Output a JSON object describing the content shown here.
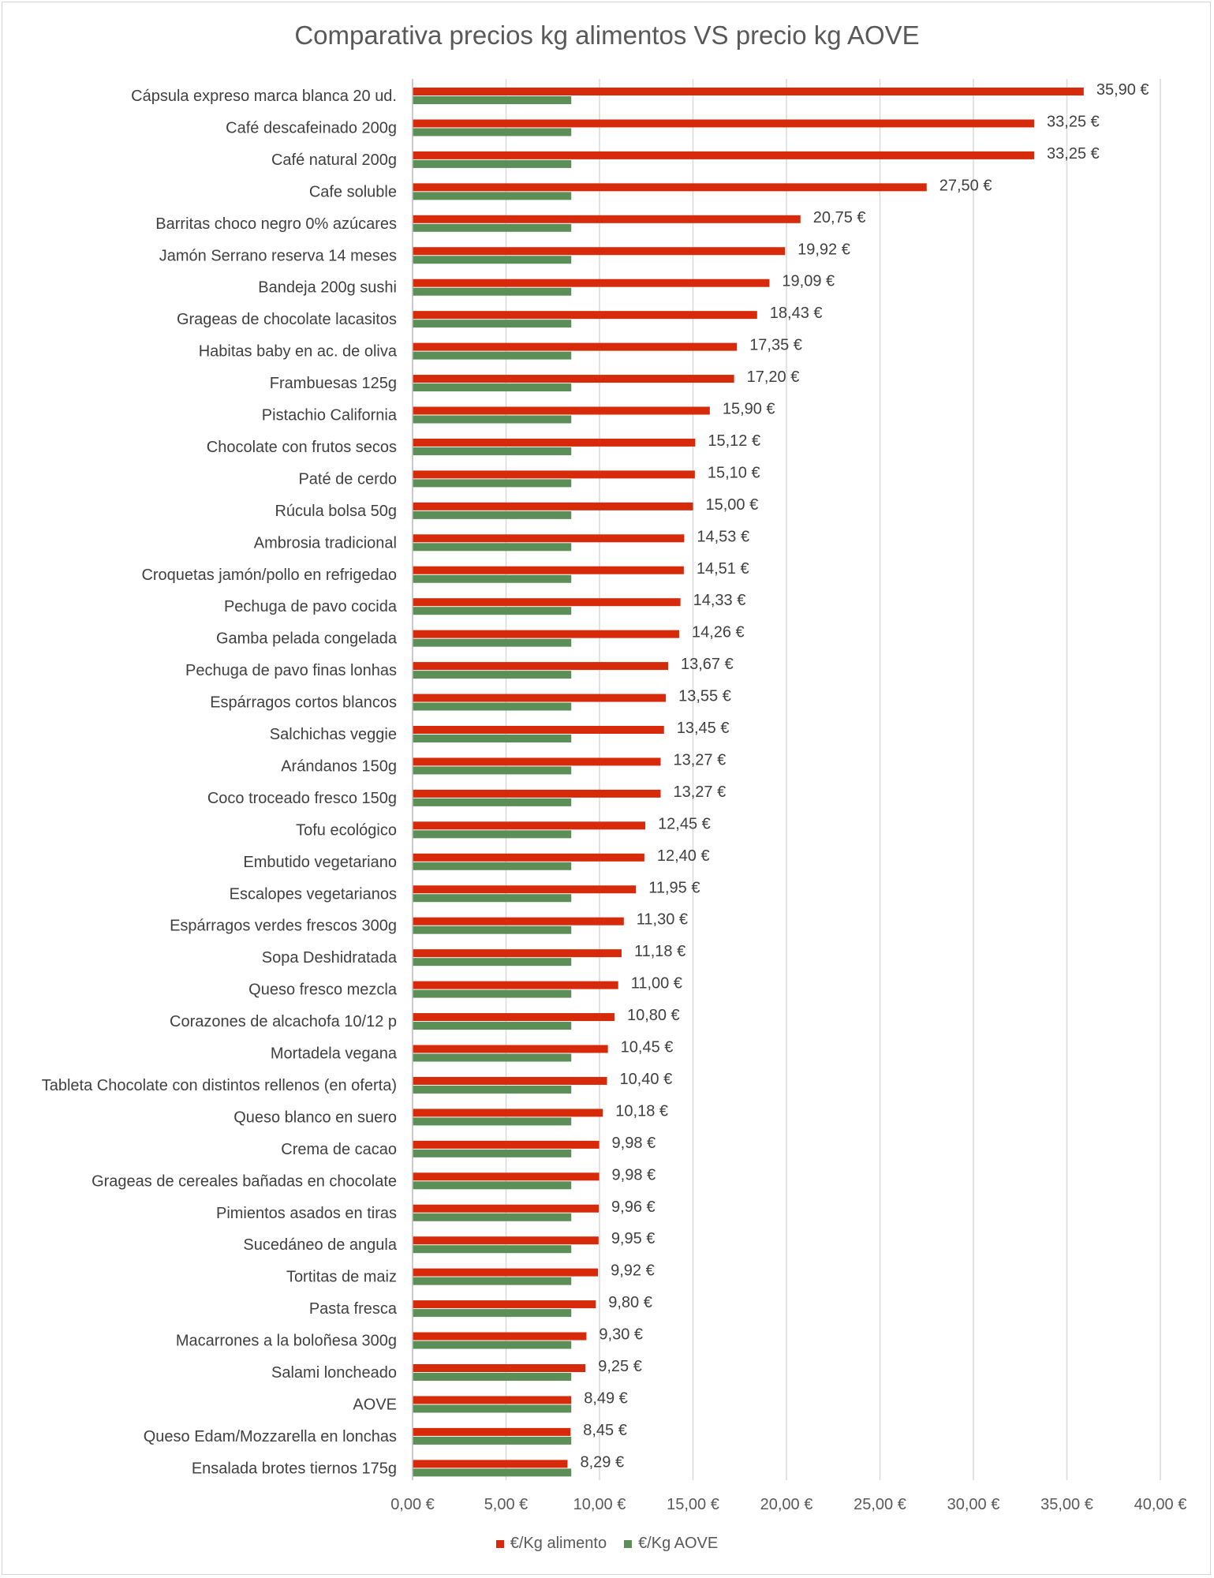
{
  "chart_data": {
    "type": "bar",
    "orientation": "horizontal",
    "title": "Comparativa precios kg alimentos VS precio kg AOVE",
    "categories": [
      "Cápsula expreso marca blanca 20 ud.",
      "Café descafeinado 200g",
      "Café natural 200g",
      "Cafe soluble",
      "Barritas choco negro 0% azúcares",
      "Jamón Serrano reserva 14 meses",
      "Bandeja 200g sushi",
      "Grageas de chocolate lacasitos",
      "Habitas baby en ac. de oliva",
      "Frambuesas 125g",
      "Pistachio California",
      "Chocolate con frutos secos",
      "Paté de cerdo",
      "Rúcula bolsa 50g",
      "Ambrosia tradicional",
      "Croquetas jamón/pollo  en refrigedao",
      "Pechuga de pavo cocida",
      "Gamba pelada congelada",
      "Pechuga de pavo finas lonhas",
      "Espárragos cortos blancos",
      "Salchichas veggie",
      "Arándanos 150g",
      "Coco troceado fresco 150g",
      "Tofu ecológico",
      "Embutido vegetariano",
      "Escalopes vegetarianos",
      "Espárragos verdes frescos 300g",
      "Sopa Deshidratada",
      "Queso fresco mezcla",
      "Corazones de alcachofa 10/12 p",
      "Mortadela vegana",
      "Tableta Chocolate con distintos rellenos (en oferta)",
      "Queso blanco en suero",
      "Crema de cacao",
      "Grageas de cereales bañadas en chocolate",
      "Pimientos asados en tiras",
      "Sucedáneo de angula",
      "Tortitas de maiz",
      "Pasta fresca",
      "Macarrones a la boloñesa 300g",
      "Salami loncheado",
      "AOVE",
      "Queso Edam/Mozzarella en lonchas",
      "Ensalada brotes tiernos 175g"
    ],
    "series": [
      {
        "name": "€/Kg alimento",
        "color": "#d62a0a",
        "values": [
          35.9,
          33.25,
          33.25,
          27.5,
          20.75,
          19.92,
          19.09,
          18.43,
          17.35,
          17.2,
          15.9,
          15.12,
          15.1,
          15.0,
          14.53,
          14.51,
          14.33,
          14.26,
          13.67,
          13.55,
          13.45,
          13.27,
          13.27,
          12.45,
          12.4,
          11.95,
          11.3,
          11.18,
          11.0,
          10.8,
          10.45,
          10.4,
          10.18,
          9.98,
          9.98,
          9.96,
          9.95,
          9.92,
          9.8,
          9.3,
          9.25,
          8.49,
          8.45,
          8.29
        ],
        "labels": [
          "35,90 €",
          "33,25 €",
          "33,25 €",
          "27,50 €",
          "20,75 €",
          "19,92 €",
          "19,09 €",
          "18,43 €",
          "17,35 €",
          "17,20 €",
          "15,90 €",
          "15,12 €",
          "15,10 €",
          "15,00 €",
          "14,53 €",
          "14,51 €",
          "14,33 €",
          "14,26 €",
          "13,67 €",
          "13,55 €",
          "13,45 €",
          "13,27 €",
          "13,27 €",
          "12,45 €",
          "12,40 €",
          "11,95 €",
          "11,30 €",
          "11,18 €",
          "11,00 €",
          "10,80 €",
          "10,45 €",
          "10,40 €",
          "10,18 €",
          "9,98 €",
          "9,98 €",
          "9,96 €",
          "9,95 €",
          "9,92 €",
          "9,80 €",
          "9,30 €",
          "9,25 €",
          "8,49 €",
          "8,45 €",
          "8,29 €"
        ]
      },
      {
        "name": "€/Kg AOVE",
        "color": "#5b8f57",
        "value": 8.49
      }
    ],
    "xlim": [
      0,
      40
    ],
    "xticks": [
      0,
      5,
      10,
      15,
      20,
      25,
      30,
      35,
      40
    ],
    "xtick_labels": [
      "0,00 €",
      "5,00 €",
      "10,00 €",
      "15,00 €",
      "20,00 €",
      "25,00 €",
      "30,00 €",
      "35,00 €",
      "40,00 €"
    ],
    "grid": "vertical",
    "legend": "bottom"
  }
}
